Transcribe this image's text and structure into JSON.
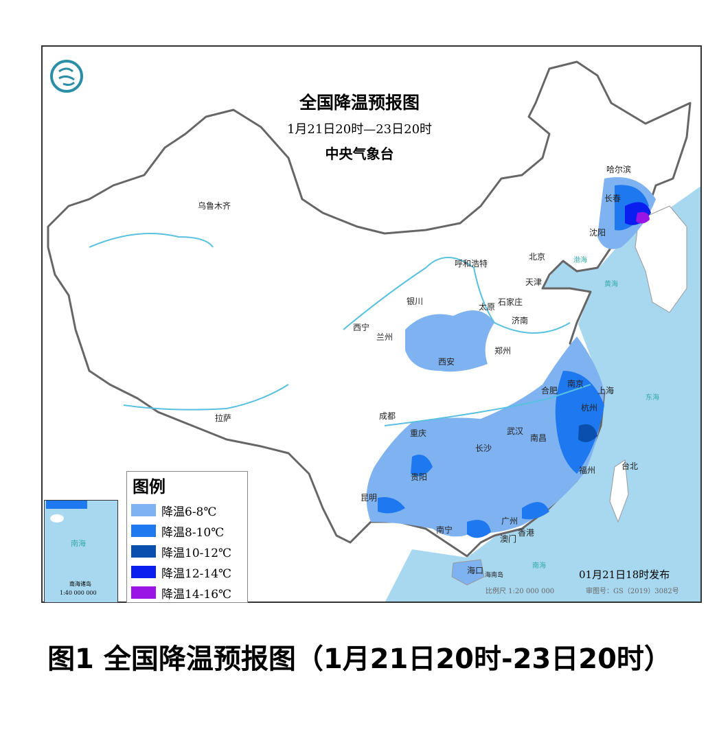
{
  "map": {
    "title": "全国降温预报图",
    "period": "1月21日20时—23日20时",
    "issuer": "中央气象台",
    "issued": "01月21日18时发布",
    "scale": "比例尺 1:20 000 000",
    "approval": "审图号：GS（2019）3082号",
    "sea_labels": [
      "渤海",
      "黄海",
      "东海",
      "南海"
    ],
    "cities": [
      "哈尔滨",
      "长春",
      "沈阳",
      "北京",
      "天津",
      "呼和浩特",
      "石家庄",
      "太原",
      "济南",
      "银川",
      "西宁",
      "兰州",
      "西安",
      "郑州",
      "乌鲁木齐",
      "拉萨",
      "成都",
      "重庆",
      "武汉",
      "合肥",
      "南京",
      "上海",
      "杭州",
      "南昌",
      "长沙",
      "贵阳",
      "昆明",
      "福州",
      "台北",
      "南宁",
      "广州",
      "香港",
      "澳门",
      "海口"
    ],
    "island_label": "海南岛",
    "inset": {
      "sea": "南海",
      "title": "南海诸岛",
      "scale": "1:40 000 000"
    }
  },
  "legend": {
    "title": "图例",
    "items": [
      {
        "label": "降温6-8℃",
        "color": "#7fb2f0"
      },
      {
        "label": "降温8-10℃",
        "color": "#1e78f0"
      },
      {
        "label": "降温10-12℃",
        "color": "#0a4fae"
      },
      {
        "label": "降温12-14℃",
        "color": "#0a1ef0"
      },
      {
        "label": "降温14-16℃",
        "color": "#9a14e6"
      }
    ]
  },
  "caption": "图1 全国降温预报图（1月21日20时-23日20时）",
  "colors": {
    "sea": "#a8d8ef",
    "land": "#ffffff",
    "border": "#666666"
  }
}
